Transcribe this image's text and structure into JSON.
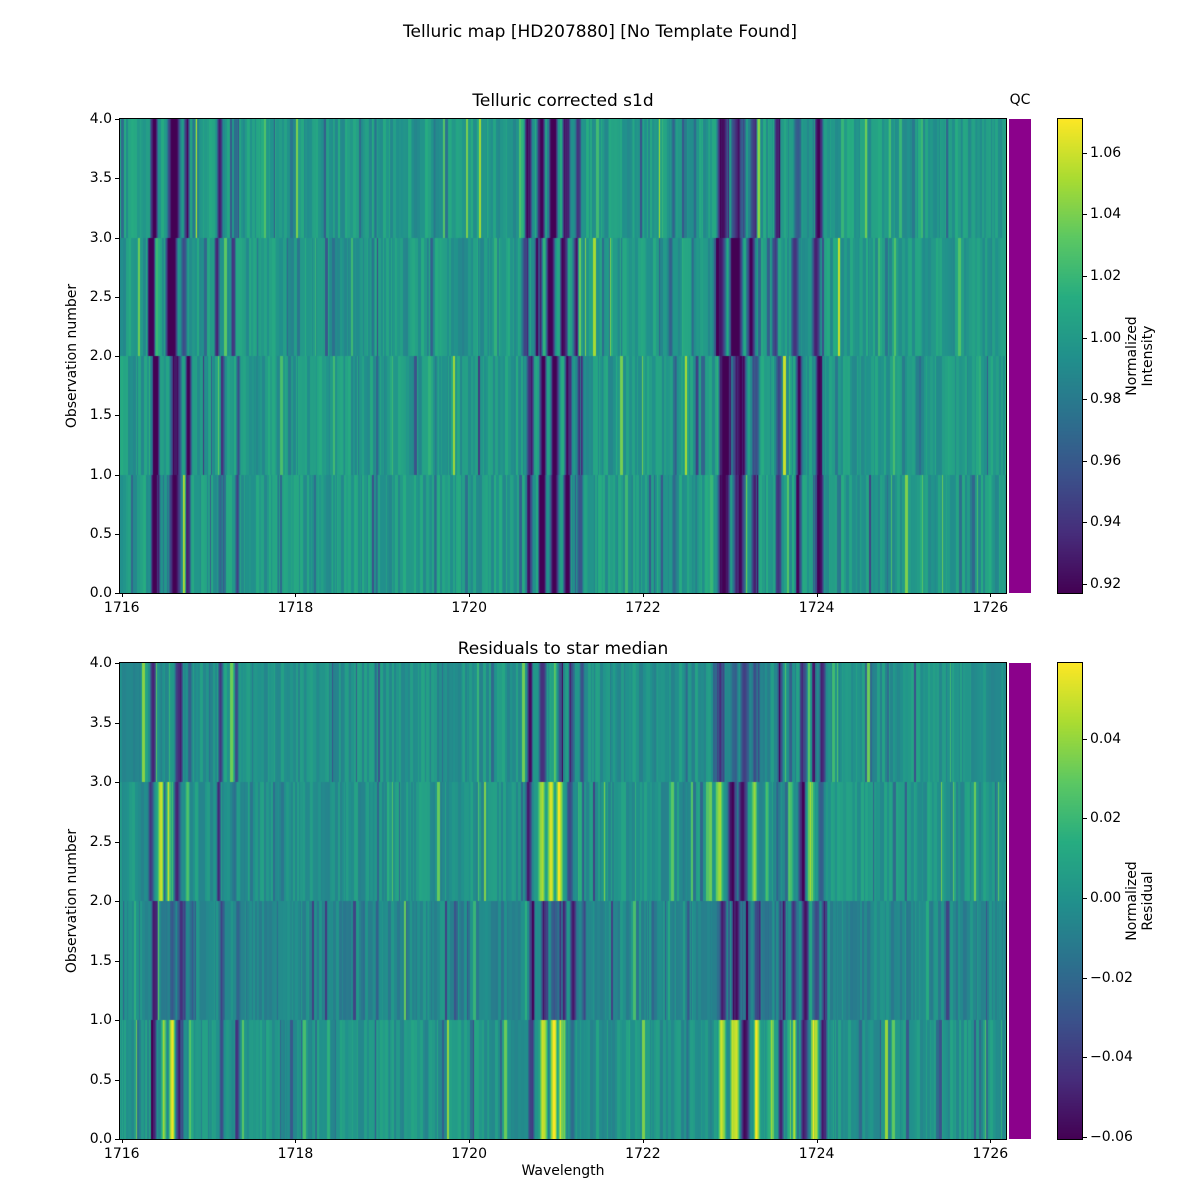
{
  "figure": {
    "suptitle": "Telluric map [HD207880] [No Template Found]",
    "background": "#ffffff",
    "text_color": "#000000"
  },
  "chart_data": [
    {
      "id": "telluric-corrected-s1d",
      "type": "heatmap",
      "title": "Telluric corrected s1d",
      "ylabel": "Observation number",
      "xlabel": "",
      "colormap": "viridis",
      "x_range": [
        1715.98,
        1726.18
      ],
      "y_range": [
        0,
        4
      ],
      "n_observations": 4,
      "band_order": "top-to-bottom = observation 4 down to 1",
      "base_value": 1.0,
      "value_range": [
        0.917,
        1.071
      ],
      "x_ticks": [
        {
          "label": "1716",
          "value": 1716
        },
        {
          "label": "1718",
          "value": 1718
        },
        {
          "label": "1720",
          "value": 1720
        },
        {
          "label": "1722",
          "value": 1722
        },
        {
          "label": "1724",
          "value": 1724
        },
        {
          "label": "1726",
          "value": 1726
        }
      ],
      "y_ticks": [
        {
          "label": "0.0",
          "value": 0
        },
        {
          "label": "0.5",
          "value": 0.5
        },
        {
          "label": "1.0",
          "value": 1
        },
        {
          "label": "1.5",
          "value": 1.5
        },
        {
          "label": "2.0",
          "value": 2
        },
        {
          "label": "2.5",
          "value": 2.5
        },
        {
          "label": "3.0",
          "value": 3
        },
        {
          "label": "3.5",
          "value": 3.5
        },
        {
          "label": "4.0",
          "value": 4
        }
      ],
      "colorbar": {
        "label_line1": "Normalized",
        "label_line2": "Intensity",
        "ticks": [
          {
            "label": "1.06",
            "value": 1.06
          },
          {
            "label": "1.04",
            "value": 1.04
          },
          {
            "label": "1.02",
            "value": 1.02
          },
          {
            "label": "1.00",
            "value": 1.0
          },
          {
            "label": "0.98",
            "value": 0.98
          },
          {
            "label": "0.96",
            "value": 0.96
          },
          {
            "label": "0.94",
            "value": 0.94
          },
          {
            "label": "0.92",
            "value": 0.92
          }
        ]
      },
      "qc": {
        "label": "QC",
        "color": "#8b018b"
      },
      "noise": {
        "amp": 0.013,
        "spike_prob": 0.12,
        "spike_amp": 0.05,
        "seed": 20240717
      },
      "band_shifts": [
        0.0,
        -0.03,
        0.02,
        0.01
      ],
      "band_offsets": [
        0,
        0,
        0,
        0
      ],
      "features": [
        {
          "c": 1716.37,
          "w": 0.05,
          "v": [
            -0.09,
            -0.1,
            -0.09,
            -0.09
          ]
        },
        {
          "c": 1716.6,
          "w": 0.08,
          "v": [
            -0.1,
            -0.11,
            -0.08,
            -0.09
          ]
        },
        {
          "c": 1716.75,
          "w": 0.04,
          "v": [
            -0.07,
            -0.05,
            -0.09,
            -0.08
          ]
        },
        {
          "c": 1717.13,
          "w": 0.04,
          "v": [
            -0.08,
            -0.06,
            -0.06,
            -0.04
          ]
        },
        {
          "c": 1717.32,
          "w": 0.03,
          "v": [
            -0.04,
            -0.05,
            -0.04,
            -0.06
          ]
        },
        {
          "c": 1718.92,
          "w": 0.02,
          "v": [
            -0.03,
            -0.02,
            -0.03,
            -0.02
          ]
        },
        {
          "c": 1719.6,
          "w": 0.02,
          "v": [
            -0.02,
            -0.03,
            -0.02,
            -0.03
          ]
        },
        {
          "c": 1720.68,
          "w": 0.05,
          "v": [
            -0.08,
            -0.06,
            -0.07,
            -0.07
          ]
        },
        {
          "c": 1720.83,
          "w": 0.05,
          "v": [
            -0.09,
            -0.09,
            -0.08,
            -0.09
          ]
        },
        {
          "c": 1720.97,
          "w": 0.06,
          "v": [
            -0.1,
            -0.1,
            -0.09,
            -0.1
          ]
        },
        {
          "c": 1721.12,
          "w": 0.05,
          "v": [
            -0.08,
            -0.09,
            -0.08,
            -0.08
          ]
        },
        {
          "c": 1721.26,
          "w": 0.04,
          "v": [
            -0.06,
            -0.07,
            -0.06,
            -0.05
          ]
        },
        {
          "c": 1722.35,
          "w": 0.03,
          "v": [
            -0.04,
            -0.03,
            -0.04,
            -0.03
          ]
        },
        {
          "c": 1722.6,
          "w": 0.02,
          "v": [
            -0.03,
            -0.02,
            -0.03,
            -0.02
          ]
        },
        {
          "c": 1722.92,
          "w": 0.08,
          "v": [
            -0.09,
            -0.08,
            -0.1,
            -0.09
          ]
        },
        {
          "c": 1723.1,
          "w": 0.09,
          "v": [
            -0.07,
            -0.11,
            -0.09,
            -0.08
          ]
        },
        {
          "c": 1723.28,
          "w": 0.05,
          "v": [
            -0.05,
            -0.09,
            -0.05,
            -0.06
          ]
        },
        {
          "c": 1723.55,
          "w": 0.04,
          "v": [
            -0.06,
            -0.05,
            -0.06,
            -0.07
          ]
        },
        {
          "c": 1723.78,
          "w": 0.05,
          "v": [
            -0.04,
            -0.05,
            -0.07,
            -0.08
          ]
        },
        {
          "c": 1724.02,
          "w": 0.06,
          "v": [
            -0.09,
            -0.07,
            -0.08,
            -0.09
          ]
        }
      ]
    },
    {
      "id": "residuals-to-star-median",
      "type": "heatmap",
      "title": "Residuals to star median",
      "ylabel": "Observation number",
      "xlabel": "Wavelength",
      "colormap": "viridis",
      "x_range": [
        1715.98,
        1726.18
      ],
      "y_range": [
        0,
        4
      ],
      "n_observations": 4,
      "band_order": "top-to-bottom = observation 4 down to 1",
      "base_value": 0.0,
      "value_range": [
        -0.0605,
        0.059
      ],
      "x_ticks": [
        {
          "label": "1716",
          "value": 1716
        },
        {
          "label": "1718",
          "value": 1718
        },
        {
          "label": "1720",
          "value": 1720
        },
        {
          "label": "1722",
          "value": 1722
        },
        {
          "label": "1724",
          "value": 1724
        },
        {
          "label": "1726",
          "value": 1726
        }
      ],
      "y_ticks": [
        {
          "label": "0.0",
          "value": 0
        },
        {
          "label": "0.5",
          "value": 0.5
        },
        {
          "label": "1.0",
          "value": 1
        },
        {
          "label": "1.5",
          "value": 1.5
        },
        {
          "label": "2.0",
          "value": 2
        },
        {
          "label": "2.5",
          "value": 2.5
        },
        {
          "label": "3.0",
          "value": 3
        },
        {
          "label": "3.5",
          "value": 3.5
        },
        {
          "label": "4.0",
          "value": 4
        }
      ],
      "colorbar": {
        "label_line1": "Normalized",
        "label_line2": "Residual",
        "ticks": [
          {
            "label": "0.04",
            "value": 0.04
          },
          {
            "label": "0.02",
            "value": 0.02
          },
          {
            "label": "0.00",
            "value": 0.0
          },
          {
            "label": "−0.02",
            "value": -0.02
          },
          {
            "label": "−0.04",
            "value": -0.04
          },
          {
            "label": "−0.06",
            "value": -0.06
          }
        ]
      },
      "qc": {
        "label": "",
        "color": "#8b018b"
      },
      "noise": {
        "amp": 0.009,
        "spike_prob": 0.15,
        "spike_amp": 0.032,
        "seed": 987654
      },
      "band_shifts": [
        0.0,
        -0.02,
        0.02,
        0.01
      ],
      "band_offsets": [
        0.0,
        0.001,
        -0.005,
        0.001
      ],
      "features": [
        {
          "c": 1716.36,
          "w": 0.04,
          "v": [
            -0.05,
            -0.045,
            -0.05,
            -0.055
          ]
        },
        {
          "c": 1716.47,
          "w": 0.04,
          "v": [
            -0.015,
            0.05,
            -0.01,
            0.045
          ]
        },
        {
          "c": 1716.57,
          "w": 0.04,
          "v": [
            0.0,
            0.052,
            -0.02,
            0.055
          ]
        },
        {
          "c": 1716.66,
          "w": 0.05,
          "v": [
            -0.05,
            -0.05,
            -0.04,
            -0.058
          ]
        },
        {
          "c": 1716.78,
          "w": 0.03,
          "v": [
            -0.02,
            0.03,
            -0.02,
            0.02
          ]
        },
        {
          "c": 1717.14,
          "w": 0.03,
          "v": [
            -0.035,
            -0.045,
            -0.03,
            -0.03
          ]
        },
        {
          "c": 1717.32,
          "w": 0.03,
          "v": [
            -0.03,
            -0.02,
            -0.02,
            -0.05
          ]
        },
        {
          "c": 1718.92,
          "w": 0.02,
          "v": [
            -0.015,
            -0.01,
            -0.02,
            -0.01
          ]
        },
        {
          "c": 1720.7,
          "w": 0.04,
          "v": [
            -0.045,
            -0.03,
            -0.04,
            -0.04
          ]
        },
        {
          "c": 1720.85,
          "w": 0.05,
          "v": [
            -0.05,
            0.04,
            -0.045,
            0.05
          ]
        },
        {
          "c": 1720.96,
          "w": 0.05,
          "v": [
            0.02,
            0.056,
            -0.02,
            0.058
          ]
        },
        {
          "c": 1721.06,
          "w": 0.05,
          "v": [
            -0.03,
            0.05,
            -0.05,
            0.055
          ]
        },
        {
          "c": 1721.18,
          "w": 0.04,
          "v": [
            -0.05,
            -0.035,
            -0.04,
            -0.02
          ]
        },
        {
          "c": 1721.3,
          "w": 0.03,
          "v": [
            -0.03,
            0.02,
            -0.03,
            -0.01
          ]
        },
        {
          "c": 1722.5,
          "w": 0.02,
          "v": [
            -0.02,
            -0.01,
            -0.02,
            -0.015
          ]
        },
        {
          "c": 1722.9,
          "w": 0.05,
          "v": [
            -0.05,
            0.045,
            -0.04,
            0.05
          ]
        },
        {
          "c": 1723.05,
          "w": 0.06,
          "v": [
            -0.02,
            -0.057,
            -0.05,
            0.056
          ]
        },
        {
          "c": 1723.17,
          "w": 0.06,
          "v": [
            -0.045,
            -0.05,
            -0.02,
            -0.057
          ]
        },
        {
          "c": 1723.3,
          "w": 0.04,
          "v": [
            -0.03,
            0.04,
            -0.04,
            0.045
          ]
        },
        {
          "c": 1723.45,
          "w": 0.03,
          "v": [
            -0.01,
            0.03,
            -0.01,
            0.02
          ]
        },
        {
          "c": 1723.58,
          "w": 0.04,
          "v": [
            -0.04,
            -0.02,
            -0.03,
            -0.05
          ]
        },
        {
          "c": 1723.72,
          "w": 0.04,
          "v": [
            -0.01,
            0.02,
            -0.04,
            0.048
          ]
        },
        {
          "c": 1723.85,
          "w": 0.05,
          "v": [
            -0.03,
            -0.04,
            -0.05,
            -0.05
          ]
        },
        {
          "c": 1723.98,
          "w": 0.04,
          "v": [
            -0.02,
            0.03,
            -0.03,
            0.052
          ]
        },
        {
          "c": 1724.07,
          "w": 0.04,
          "v": [
            -0.05,
            -0.03,
            -0.04,
            -0.056
          ]
        }
      ]
    }
  ]
}
